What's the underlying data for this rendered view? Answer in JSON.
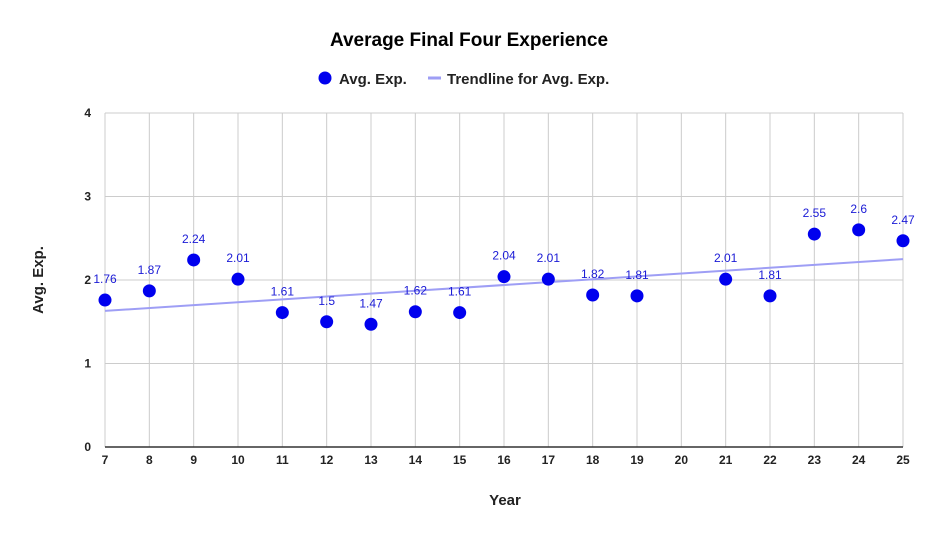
{
  "chart_data": {
    "type": "scatter",
    "title": "Average Final Four Experience",
    "xlabel": "Year",
    "ylabel": "Avg. Exp.",
    "xlim": [
      7,
      25
    ],
    "ylim": [
      0,
      4
    ],
    "x_ticks": [
      7,
      8,
      9,
      10,
      11,
      12,
      13,
      14,
      15,
      16,
      17,
      18,
      19,
      20,
      21,
      22,
      23,
      24,
      25
    ],
    "y_ticks": [
      0,
      1,
      2,
      3,
      4
    ],
    "grid": true,
    "legend_position": "top-center",
    "series": [
      {
        "name": "Avg. Exp.",
        "color": "#0000ee",
        "x": [
          7,
          8,
          9,
          10,
          11,
          12,
          13,
          14,
          15,
          16,
          17,
          18,
          19,
          21,
          22,
          23,
          24,
          25
        ],
        "y": [
          1.76,
          1.87,
          2.24,
          2.01,
          1.61,
          1.5,
          1.47,
          1.62,
          1.61,
          2.04,
          2.01,
          1.82,
          1.81,
          2.01,
          1.81,
          2.55,
          2.6,
          2.47
        ],
        "labels": [
          "1.76",
          "1.87",
          "2.24",
          "2.01",
          "1.61",
          "1.5",
          "1.47",
          "1.62",
          "1.61",
          "2.04",
          "2.01",
          "1.82",
          "1.81",
          "2.01",
          "1.81",
          "2.55",
          "2.6",
          "2.47"
        ]
      }
    ],
    "trendline": {
      "name": "Trendline for Avg. Exp.",
      "color": "#9e9ef5",
      "start": [
        7,
        1.63
      ],
      "end": [
        25,
        2.25
      ]
    }
  }
}
